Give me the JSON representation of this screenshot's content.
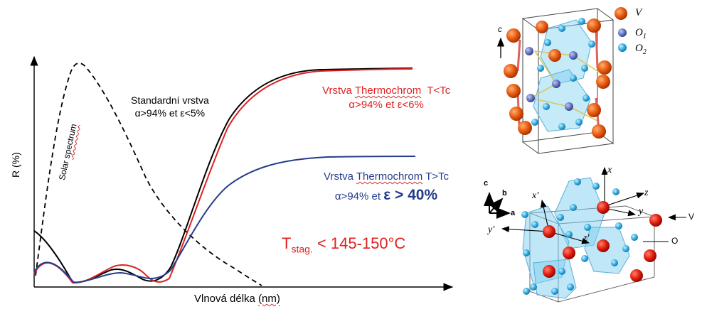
{
  "chart": {
    "y_axis_label": "R (%)",
    "x_axis_label_prefix": "Vlnová délka ",
    "x_axis_label_unit": "(nm)",
    "solar_label_prefix": "Solar ",
    "solar_label_word": "spectrum",
    "standard_line1": "Standardní vrstva",
    "standard_line2": "α>94% et ε<5%",
    "red_title_prefix": "Vrstva ",
    "red_title_word": "Thermochrom",
    "red_title_suffix": "  T<Tc",
    "red_sub": "α>94% et ε<6%",
    "blue_title_prefix": "Vrstva ",
    "blue_title_word": "Thermochrom",
    "blue_title_suffix": " T>Tc",
    "blue_sub_prefix": "α>94% et ",
    "blue_sub_big": "ε > 40%",
    "tstag_T": "T",
    "tstag_sub": "stag.",
    "tstag_rest": " < 145-150°C",
    "colors": {
      "red": "#e02020",
      "blue": "#243c8c",
      "black": "#000000"
    }
  },
  "crystal_top": {
    "axis_c": "c",
    "legend": [
      {
        "sym": "V",
        "sub": "",
        "color": "#e85a10"
      },
      {
        "sym": "O",
        "sub": "1",
        "color": "#6070c0"
      },
      {
        "sym": "O",
        "sub": "2",
        "color": "#30a8e0"
      }
    ]
  },
  "crystal_bottom": {
    "axes": {
      "c": "c",
      "b": "b",
      "a": "a"
    },
    "labels": {
      "x": "x",
      "xp": "x′",
      "z": "z",
      "y": "y",
      "yp": "y′",
      "zp": "z′"
    },
    "legend_V": "V",
    "legend_O": "O"
  }
}
